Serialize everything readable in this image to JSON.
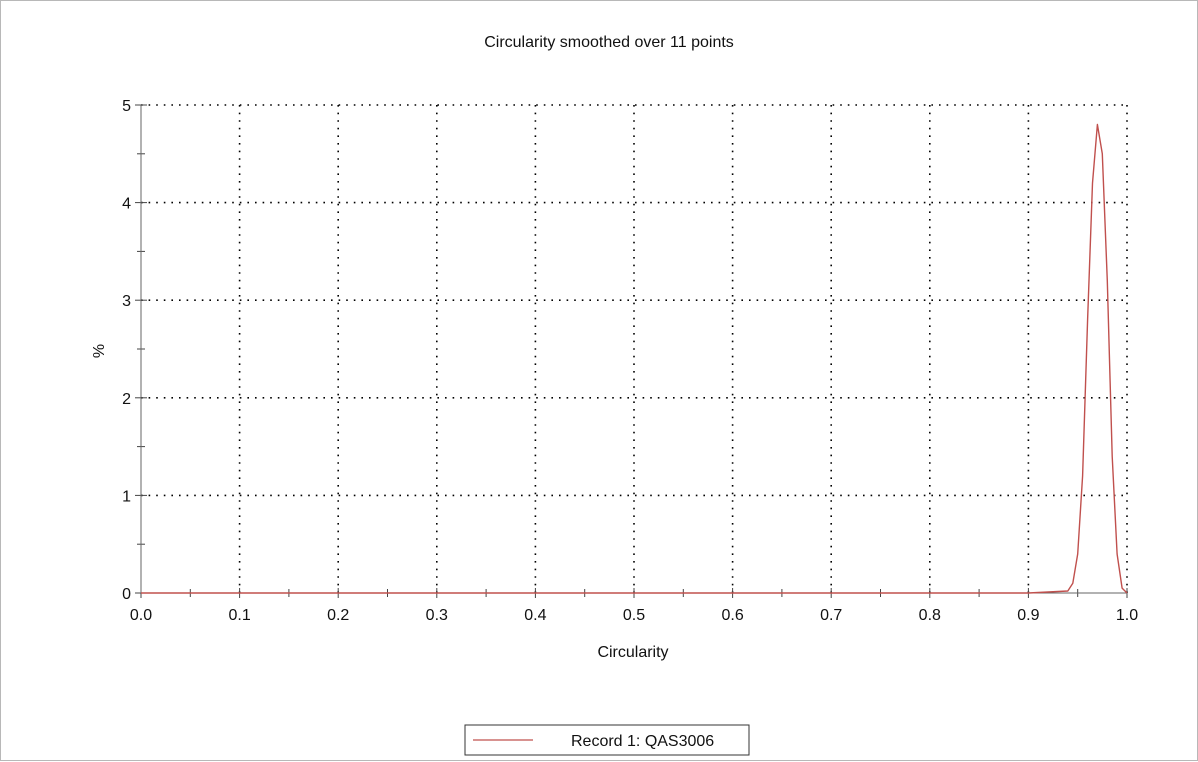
{
  "chart_data": {
    "type": "line",
    "title": "Circularity smoothed over 11 points",
    "xlabel": "Circularity",
    "ylabel": "%",
    "xlim": [
      0.0,
      1.0
    ],
    "ylim": [
      0,
      5
    ],
    "x_ticks": [
      "0.0",
      "0.1",
      "0.2",
      "0.3",
      "0.4",
      "0.5",
      "0.6",
      "0.7",
      "0.8",
      "0.9",
      "1.0"
    ],
    "y_ticks": [
      "0",
      "1",
      "2",
      "3",
      "4",
      "5"
    ],
    "grid": true,
    "legend_position": "bottom-center",
    "series": [
      {
        "name": "Record 1: QAS3006",
        "color": "#c0504d",
        "points": [
          [
            0.0,
            0.0
          ],
          [
            0.5,
            0.0
          ],
          [
            0.9,
            0.0
          ],
          [
            0.94,
            0.02
          ],
          [
            0.945,
            0.1
          ],
          [
            0.95,
            0.4
          ],
          [
            0.955,
            1.2
          ],
          [
            0.96,
            2.8
          ],
          [
            0.965,
            4.2
          ],
          [
            0.97,
            4.8
          ],
          [
            0.975,
            4.5
          ],
          [
            0.98,
            3.2
          ],
          [
            0.985,
            1.4
          ],
          [
            0.99,
            0.4
          ],
          [
            0.995,
            0.05
          ],
          [
            1.0,
            0.0
          ]
        ]
      }
    ]
  }
}
